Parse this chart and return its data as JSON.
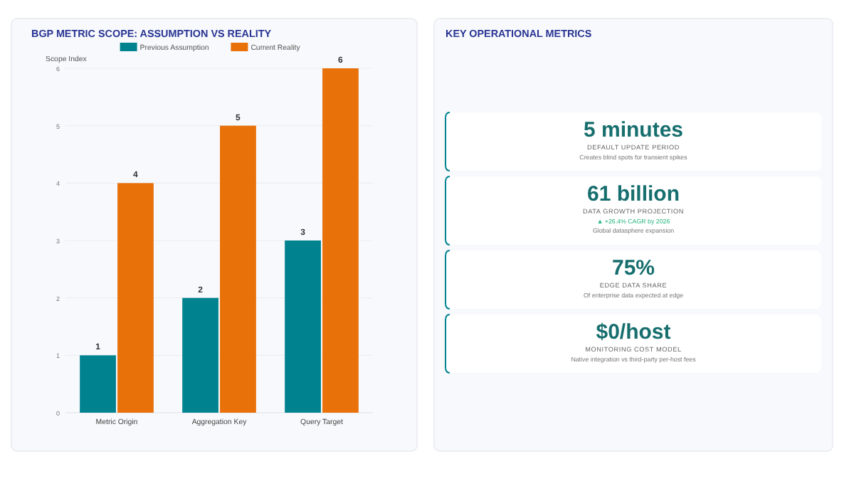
{
  "chart_data": [
    {
      "type": "bar",
      "title": "BGP METRIC SCOPE: ASSUMPTION VS REALITY",
      "ylabel": "Scope Index",
      "categories": [
        "Metric Origin",
        "Aggregation Key",
        "Query Target"
      ],
      "series": [
        {
          "name": "Previous Assumption",
          "color": "#00838f",
          "values": [
            1,
            2,
            3
          ]
        },
        {
          "name": "Current Reality",
          "color": "#e8710a",
          "values": [
            4,
            5,
            6
          ]
        }
      ],
      "ylim": [
        0,
        6
      ],
      "yticks": [
        0,
        1,
        2,
        3,
        4,
        5,
        6
      ],
      "grid": "y",
      "legend": "top",
      "data_labels": true
    },
    {
      "type": "other",
      "title": "KEY OPERATIONAL METRICS"
    },
    {
      "type": "other",
      "title": "5 minutes",
      "subtitle": "DEFAULT UPDATE PERIOD",
      "annotations": [
        "Creates blind spots for transient spikes"
      ]
    },
    {
      "type": "other",
      "title": "61 billion",
      "subtitle": "DATA GROWTH PROJECTION",
      "annotations": [
        "▲ +26.4% CAGR by 2026",
        "Global datasphere expansion"
      ]
    },
    {
      "type": "other",
      "title": "75%",
      "subtitle": "EDGE DATA SHARE",
      "annotations": [
        "Of enterprise data expected at edge"
      ]
    },
    {
      "type": "other",
      "title": "$0/host",
      "subtitle": "MONITORING COST MODEL",
      "annotations": [
        "Native integration vs third-party per-host fees"
      ]
    }
  ]
}
